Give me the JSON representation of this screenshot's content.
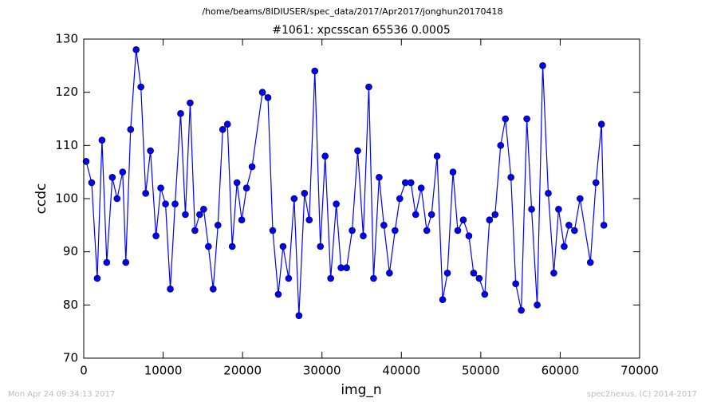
{
  "chart_data": {
    "type": "line",
    "suptitle": "/home/beams/8IDIUSER/spec_data/2017/Apr2017/jonghun20170418",
    "title": "#1061: xpcsscan 65536 0.0005",
    "x_label": "img_n",
    "y_label": "ccdc",
    "footer_left": "Mon Apr 24 09:34:13 2017",
    "footer_right": "spec2nexus, (C) 2014-2017",
    "x": [
      300,
      1000,
      1700,
      2300,
      2900,
      3600,
      4200,
      4900,
      5300,
      5900,
      6600,
      7200,
      7800,
      8400,
      9100,
      9700,
      10300,
      10900,
      11500,
      12200,
      12800,
      13400,
      14000,
      14600,
      15100,
      15700,
      16300,
      16900,
      17500,
      18100,
      18700,
      19300,
      19900,
      20500,
      21200,
      22500,
      23200,
      23800,
      24500,
      25100,
      25800,
      26500,
      27100,
      27800,
      28400,
      29100,
      29800,
      30400,
      31100,
      31800,
      32400,
      33100,
      33800,
      34500,
      35200,
      35900,
      36500,
      37200,
      37800,
      38500,
      39200,
      39800,
      40500,
      41200,
      41800,
      42500,
      43200,
      43800,
      44500,
      45200,
      45800,
      46500,
      47100,
      47800,
      48500,
      49100,
      49800,
      50500,
      51100,
      51800,
      52500,
      53100,
      53800,
      54400,
      55100,
      55800,
      56400,
      57100,
      57800,
      58500,
      59200,
      59800,
      60500,
      61100,
      61800,
      62500,
      63800,
      64500,
      65200,
      65500
    ],
    "series": [
      {
        "name": "ccdc",
        "color": "#0000ff",
        "values": [
          107,
          103,
          85,
          111,
          88,
          104,
          100,
          105,
          88,
          113,
          128,
          121,
          101,
          109,
          93,
          102,
          99,
          83,
          99,
          116,
          97,
          118,
          94,
          97,
          98,
          91,
          83,
          95,
          113,
          114,
          91,
          103,
          96,
          102,
          106,
          120,
          119,
          94,
          82,
          91,
          85,
          100,
          78,
          101,
          96,
          124,
          91,
          108,
          85,
          99,
          87,
          87,
          94,
          109,
          93,
          121,
          85,
          104,
          95,
          86,
          94,
          100,
          103,
          103,
          97,
          102,
          94,
          97,
          108,
          81,
          86,
          105,
          94,
          96,
          93,
          86,
          85,
          82,
          96,
          97,
          110,
          115,
          104,
          84,
          79,
          115,
          98,
          80,
          125,
          101,
          86,
          98,
          91,
          95,
          94,
          100,
          88,
          103,
          114,
          95
        ]
      }
    ],
    "xlim": [
      0,
      70000
    ],
    "xticks": [
      0,
      10000,
      20000,
      30000,
      40000,
      50000,
      60000,
      70000
    ],
    "ylim": [
      70,
      130
    ],
    "yticks": [
      70,
      80,
      90,
      100,
      110,
      120,
      130
    ],
    "grid": false
  }
}
